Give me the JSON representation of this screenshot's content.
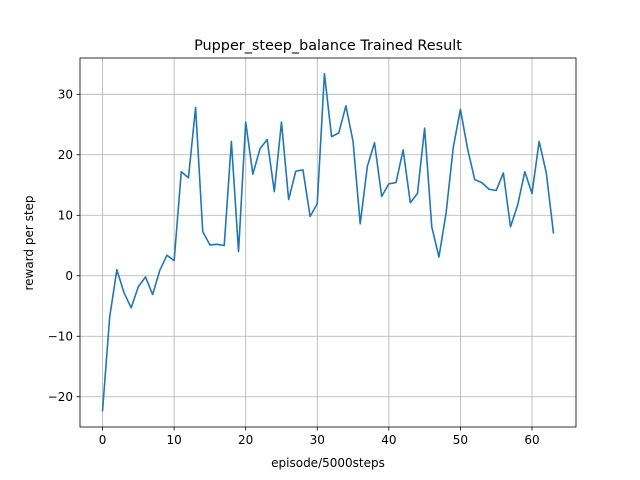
{
  "chart_data": {
    "type": "line",
    "title": "Pupper_steep_balance Trained Result",
    "xlabel": "episode/5000steps",
    "ylabel": "reward per step",
    "xlim": [
      -3.15,
      66.15
    ],
    "ylim": [
      -25.0,
      36.0
    ],
    "xticks": [
      0,
      10,
      20,
      30,
      40,
      50,
      60
    ],
    "yticks": [
      -20,
      -10,
      0,
      10,
      20,
      30
    ],
    "ytick_labels": [
      "−20",
      "−10",
      "0",
      "10",
      "20",
      "30"
    ],
    "grid": true,
    "series": [
      {
        "name": "reward",
        "color": "#1f77b4",
        "x": [
          0,
          1,
          2,
          3,
          4,
          5,
          6,
          7,
          8,
          9,
          10,
          11,
          12,
          13,
          14,
          15,
          16,
          17,
          18,
          19,
          20,
          21,
          22,
          23,
          24,
          25,
          26,
          27,
          28,
          29,
          30,
          31,
          32,
          33,
          34,
          35,
          36,
          37,
          38,
          39,
          40,
          41,
          42,
          43,
          44,
          45,
          46,
          47,
          48,
          49,
          50,
          51,
          52,
          53,
          54,
          55,
          56,
          57,
          58,
          59,
          60,
          61,
          62,
          63
        ],
        "values": [
          -22.3,
          -6.8,
          1.0,
          -2.8,
          -5.3,
          -1.8,
          -0.2,
          -3.1,
          0.9,
          3.4,
          2.5,
          17.2,
          16.2,
          27.8,
          7.3,
          5.1,
          5.2,
          5.0,
          22.2,
          4.0,
          25.4,
          16.8,
          21.0,
          22.5,
          13.9,
          25.4,
          12.6,
          17.3,
          17.5,
          9.8,
          11.9,
          33.4,
          23.0,
          23.6,
          28.1,
          22.2,
          8.6,
          18.1,
          22.0,
          13.1,
          15.2,
          15.4,
          20.8,
          12.1,
          13.6,
          24.4,
          8.1,
          3.1,
          10.4,
          21.2,
          27.5,
          21.0,
          15.9,
          15.4,
          14.3,
          14.1,
          17.0,
          8.1,
          11.7,
          17.2,
          13.6,
          22.2,
          17.0,
          7.1
        ]
      }
    ]
  }
}
